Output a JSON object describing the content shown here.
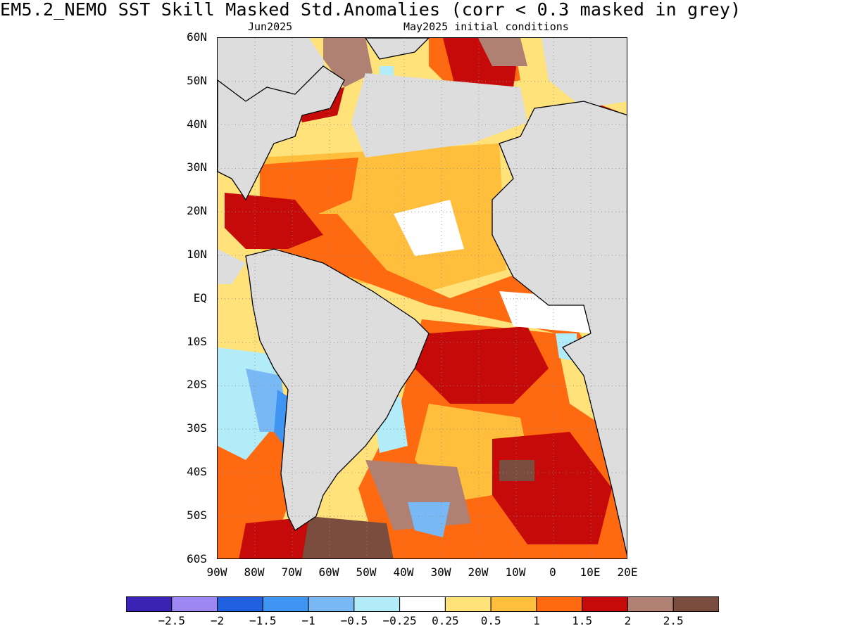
{
  "title": "EM5.2_NEMO  SST Skill Masked Std.Anomalies (corr < 0.3 masked in grey)",
  "subtitle_left": "Jun2025",
  "subtitle_right": "May2025 initial conditions",
  "lat_labels": [
    "60N",
    "50N",
    "40N",
    "30N",
    "20N",
    "10N",
    "EQ",
    "10S",
    "20S",
    "30S",
    "40S",
    "50S",
    "60S"
  ],
  "lon_labels": [
    "90W",
    "80W",
    "70W",
    "60W",
    "50W",
    "40W",
    "30W",
    "20W",
    "10W",
    "0",
    "10E",
    "20E"
  ],
  "colorbar": {
    "colors": [
      "#3a23b4",
      "#9d87f3",
      "#1f61e0",
      "#3f96f2",
      "#78b8f5",
      "#b2ecf8",
      "#ffffff",
      "#ffe27a",
      "#ffbe3c",
      "#ff6a10",
      "#c60a0a",
      "#b08073",
      "#7a4d3f"
    ],
    "tick_labels": [
      "−2.5",
      "−2",
      "−1.5",
      "−1",
      "−0.5",
      "−0.25",
      "0.25",
      "0.5",
      "1",
      "1.5",
      "2",
      "2.5"
    ]
  },
  "colors": {
    "land": "#dddddd",
    "masked": "#dddddd",
    "coast": "#000000",
    "grid": "#8a8a8a"
  }
}
